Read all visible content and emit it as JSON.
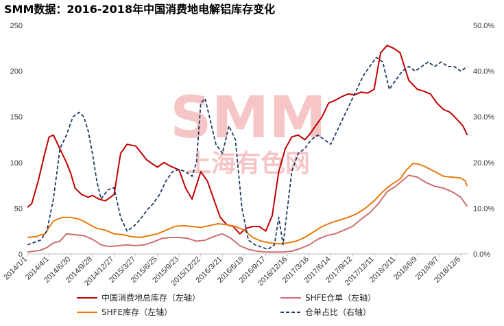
{
  "chart_data": {
    "type": "line",
    "title": "SMM数据：2016-2018年中国消费地电解铝库存变化",
    "watermark": {
      "text_main": "SMM",
      "text_sub": "上海有色网"
    },
    "y_left": {
      "ylim": [
        0,
        250
      ],
      "ticks": [
        "0",
        "50",
        "100",
        "150",
        "200",
        "250"
      ]
    },
    "y_right": {
      "ylim": [
        0,
        0.5
      ],
      "ticks": [
        "0.0%",
        "10.0%",
        "20.0%",
        "30.0%",
        "40.0%",
        "50.0%"
      ]
    },
    "x_ticks": [
      "2014/1/1",
      "2014/4/1",
      "2014/6/30",
      "2014/9/28",
      "2014/12/27",
      "2015/3/27",
      "2015/6/25",
      "2015/9/23",
      "2015/12/22",
      "2016/3/21",
      "2016/6/19",
      "2016/9/17",
      "2016/12/16",
      "2017/3/16",
      "2017/6/14",
      "2017/9/12",
      "2017/12/11",
      "2018/3/11",
      "2018/6/9",
      "2018/9/7",
      "2018/12/6"
    ],
    "x_range": [
      0,
      20.35
    ],
    "legend_position": "bottom",
    "series": [
      {
        "name": "中国消费地总库存（左轴）",
        "axis": "left",
        "color": "#c00000",
        "style": "solid",
        "x": [
          0,
          0.2,
          0.5,
          0.8,
          1.0,
          1.2,
          1.4,
          1.6,
          1.8,
          2.0,
          2.2,
          2.5,
          2.8,
          3.0,
          3.3,
          3.6,
          4.0,
          4.3,
          4.6,
          5.0,
          5.2,
          5.5,
          5.8,
          6.0,
          6.3,
          6.6,
          7.0,
          7.3,
          7.6,
          8.0,
          8.3,
          8.6,
          8.9,
          9.2,
          9.5,
          9.8,
          10.1,
          10.4,
          10.7,
          11.0,
          11.3,
          11.6,
          11.9,
          12.2,
          12.5,
          12.8,
          13.0,
          13.3,
          13.6,
          13.9,
          14.2,
          14.5,
          14.8,
          15.1,
          15.4,
          15.7,
          16.0,
          16.3,
          16.6,
          16.9,
          17.2,
          17.4,
          17.6,
          17.8,
          18.0,
          18.3,
          18.6,
          18.9,
          19.2,
          19.5,
          19.8,
          20.1,
          20.3
        ],
        "values": [
          51,
          55,
          80,
          110,
          128,
          130,
          120,
          110,
          100,
          88,
          72,
          65,
          62,
          64,
          60,
          58,
          65,
          110,
          120,
          118,
          112,
          103,
          98,
          95,
          100,
          96,
          92,
          72,
          60,
          90,
          80,
          60,
          40,
          32,
          30,
          22,
          28,
          30,
          30,
          25,
          42,
          90,
          115,
          128,
          130,
          125,
          130,
          140,
          150,
          165,
          168,
          172,
          175,
          174,
          177,
          176,
          180,
          220,
          228,
          225,
          220,
          205,
          190,
          185,
          180,
          178,
          175,
          165,
          158,
          155,
          148,
          140,
          130
        ]
      },
      {
        "name": "SHFE仓单（左轴）",
        "axis": "left",
        "color": "#cd6f6f",
        "style": "solid",
        "x": [
          0,
          0.3,
          0.6,
          0.9,
          1.2,
          1.5,
          1.8,
          2.2,
          2.6,
          3.0,
          3.4,
          3.8,
          4.2,
          4.6,
          5.0,
          5.4,
          5.8,
          6.2,
          6.6,
          7.0,
          7.4,
          7.8,
          8.2,
          8.6,
          9.0,
          9.4,
          9.8,
          10.2,
          10.6,
          11.0,
          11.4,
          11.8,
          12.2,
          12.6,
          13.0,
          13.4,
          13.8,
          14.2,
          14.6,
          15.0,
          15.4,
          15.8,
          16.2,
          16.6,
          17.0,
          17.3,
          17.6,
          18.0,
          18.4,
          18.8,
          19.2,
          19.6,
          20.0,
          20.3
        ],
        "values": [
          2,
          3,
          4,
          7,
          12,
          14,
          22,
          21,
          20,
          16,
          10,
          8,
          9,
          10,
          9,
          10,
          13,
          17,
          18,
          18,
          17,
          14,
          15,
          19,
          22,
          17,
          9,
          5,
          3,
          2,
          2,
          2,
          3,
          6,
          10,
          16,
          20,
          22,
          26,
          30,
          38,
          45,
          55,
          68,
          74,
          80,
          86,
          84,
          78,
          74,
          72,
          68,
          62,
          52
        ]
      },
      {
        "name": "SHFE库存（左轴）",
        "axis": "left",
        "color": "#e8790c",
        "style": "solid",
        "x": [
          0,
          0.4,
          0.8,
          1.2,
          1.6,
          2.0,
          2.4,
          2.8,
          3.2,
          3.6,
          4.0,
          4.4,
          4.8,
          5.2,
          5.6,
          6.0,
          6.4,
          6.8,
          7.2,
          7.6,
          8.0,
          8.4,
          8.8,
          9.2,
          9.6,
          10.0,
          10.4,
          10.8,
          11.2,
          11.6,
          12.0,
          12.4,
          12.8,
          13.2,
          13.6,
          14.0,
          14.4,
          14.8,
          15.2,
          15.6,
          16.0,
          16.4,
          16.8,
          17.2,
          17.5,
          17.8,
          18.1,
          18.4,
          18.8,
          19.2,
          19.6,
          20.0,
          20.2,
          20.3
        ],
        "values": [
          18,
          19,
          22,
          36,
          40,
          40,
          38,
          33,
          28,
          26,
          22,
          21,
          19,
          18,
          20,
          22,
          26,
          30,
          31,
          30,
          29,
          31,
          33,
          32,
          30,
          26,
          18,
          14,
          12,
          11,
          12,
          14,
          18,
          24,
          30,
          34,
          37,
          40,
          44,
          50,
          58,
          68,
          76,
          82,
          92,
          99,
          98,
          95,
          90,
          85,
          84,
          83,
          80,
          74
        ]
      },
      {
        "name": "仓单占比（右轴）",
        "axis": "right",
        "color": "#1f3864",
        "style": "dashed",
        "x": [
          0,
          0.3,
          0.6,
          0.9,
          1.2,
          1.5,
          1.8,
          2.1,
          2.4,
          2.6,
          2.8,
          3.0,
          3.2,
          3.4,
          3.7,
          4.0,
          4.3,
          4.6,
          4.9,
          5.2,
          5.5,
          5.8,
          6.1,
          6.4,
          6.7,
          7.0,
          7.3,
          7.6,
          7.8,
          8.0,
          8.2,
          8.4,
          8.7,
          9.0,
          9.3,
          9.6,
          9.9,
          10.2,
          10.5,
          10.8,
          11.1,
          11.4,
          11.6,
          11.8,
          12.0,
          12.2,
          12.5,
          12.8,
          13.1,
          13.4,
          13.7,
          14.0,
          14.3,
          14.6,
          14.9,
          15.2,
          15.5,
          15.8,
          16.1,
          16.4,
          16.7,
          17.0,
          17.3,
          17.6,
          17.9,
          18.2,
          18.5,
          18.8,
          19.1,
          19.4,
          19.7,
          20.0,
          20.3
        ],
        "values": [
          0.02,
          0.025,
          0.03,
          0.05,
          0.12,
          0.23,
          0.26,
          0.3,
          0.31,
          0.3,
          0.27,
          0.22,
          0.16,
          0.12,
          0.14,
          0.145,
          0.08,
          0.05,
          0.06,
          0.075,
          0.095,
          0.11,
          0.13,
          0.16,
          0.18,
          0.185,
          0.18,
          0.17,
          0.2,
          0.33,
          0.34,
          0.3,
          0.24,
          0.22,
          0.28,
          0.25,
          0.1,
          0.03,
          0.02,
          0.015,
          0.01,
          0.02,
          0.08,
          0.02,
          0.1,
          0.18,
          0.22,
          0.23,
          0.25,
          0.26,
          0.25,
          0.24,
          0.27,
          0.3,
          0.33,
          0.36,
          0.39,
          0.41,
          0.43,
          0.42,
          0.36,
          0.38,
          0.4,
          0.41,
          0.4,
          0.41,
          0.42,
          0.41,
          0.42,
          0.41,
          0.41,
          0.4,
          0.41
        ]
      }
    ]
  }
}
